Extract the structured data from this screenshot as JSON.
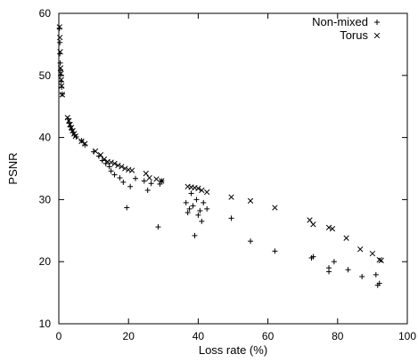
{
  "chart_data": {
    "type": "scatter",
    "title": "",
    "xlabel": "Loss rate (%)",
    "ylabel": "PSNR",
    "xlim": [
      0,
      100
    ],
    "ylim": [
      10,
      60
    ],
    "xticks": [
      0,
      20,
      40,
      60,
      80,
      100
    ],
    "yticks": [
      10,
      20,
      30,
      40,
      50,
      60
    ],
    "grid": false,
    "legend_position": "top-right",
    "series": [
      {
        "name": "Non-mixed",
        "marker": "plus",
        "color": "#000000",
        "points": [
          [
            0.2,
            57.6
          ],
          [
            0.3,
            55.3
          ],
          [
            0.3,
            53.5
          ],
          [
            0.4,
            52.0
          ],
          [
            0.5,
            50.8
          ],
          [
            0.5,
            50.0
          ],
          [
            0.7,
            49.0
          ],
          [
            0.8,
            48.1
          ],
          [
            1.0,
            47.0
          ],
          [
            2.6,
            43.0
          ],
          [
            3.0,
            42.3
          ],
          [
            3.3,
            41.7
          ],
          [
            3.7,
            41.2
          ],
          [
            4.0,
            40.8
          ],
          [
            4.5,
            40.4
          ],
          [
            5.0,
            40.1
          ],
          [
            6.5,
            39.5
          ],
          [
            7.5,
            38.8
          ],
          [
            10.0,
            37.7
          ],
          [
            11.5,
            37.0
          ],
          [
            12.5,
            36.3
          ],
          [
            13.5,
            35.8
          ],
          [
            14.5,
            35.3
          ],
          [
            15.0,
            34.6
          ],
          [
            16.0,
            34.0
          ],
          [
            17.5,
            33.5
          ],
          [
            18.5,
            32.8
          ],
          [
            19.5,
            28.7
          ],
          [
            20.5,
            32.1
          ],
          [
            22.0,
            33.4
          ],
          [
            24.5,
            33.0
          ],
          [
            25.5,
            31.5
          ],
          [
            26.5,
            32.6
          ],
          [
            28.5,
            25.6
          ],
          [
            29.0,
            32.5
          ],
          [
            29.5,
            33.0
          ],
          [
            36.5,
            29.5
          ],
          [
            37.0,
            27.9
          ],
          [
            37.5,
            28.5
          ],
          [
            38.0,
            31.0
          ],
          [
            38.5,
            29.0
          ],
          [
            39.0,
            24.2
          ],
          [
            39.5,
            30.0
          ],
          [
            40.0,
            27.5
          ],
          [
            40.5,
            28.2
          ],
          [
            41.0,
            26.5
          ],
          [
            41.5,
            29.5
          ],
          [
            42.5,
            28.5
          ],
          [
            49.5,
            27.0
          ],
          [
            55.0,
            23.3
          ],
          [
            62.0,
            21.7
          ],
          [
            72.5,
            20.6
          ],
          [
            73.0,
            20.8
          ],
          [
            77.5,
            19.0
          ],
          [
            77.5,
            18.4
          ],
          [
            79.0,
            20.0
          ],
          [
            83.0,
            18.7
          ],
          [
            87.0,
            17.6
          ],
          [
            91.0,
            17.9
          ],
          [
            91.5,
            16.2
          ],
          [
            92.0,
            16.5
          ]
        ]
      },
      {
        "name": "Torus",
        "marker": "cross",
        "color": "#000000",
        "points": [
          [
            0.2,
            57.8
          ],
          [
            0.3,
            56.1
          ],
          [
            0.4,
            53.8
          ],
          [
            0.5,
            51.2
          ],
          [
            0.6,
            50.3
          ],
          [
            0.7,
            49.3
          ],
          [
            0.8,
            48.3
          ],
          [
            1.0,
            46.9
          ],
          [
            2.5,
            43.2
          ],
          [
            2.9,
            42.7
          ],
          [
            3.2,
            42.1
          ],
          [
            3.6,
            41.6
          ],
          [
            4.0,
            41.1
          ],
          [
            4.4,
            40.6
          ],
          [
            4.8,
            40.2
          ],
          [
            6.5,
            39.4
          ],
          [
            7.5,
            39.0
          ],
          [
            10.5,
            37.8
          ],
          [
            12.0,
            37.2
          ],
          [
            13.0,
            36.5
          ],
          [
            14.0,
            36.1
          ],
          [
            15.0,
            36.0
          ],
          [
            16.0,
            35.8
          ],
          [
            17.0,
            35.5
          ],
          [
            18.0,
            35.3
          ],
          [
            19.0,
            35.0
          ],
          [
            20.0,
            34.8
          ],
          [
            21.0,
            34.7
          ],
          [
            25.0,
            34.2
          ],
          [
            26.0,
            33.5
          ],
          [
            28.0,
            33.3
          ],
          [
            29.5,
            33.0
          ],
          [
            37.0,
            32.1
          ],
          [
            38.0,
            32.0
          ],
          [
            39.0,
            31.9
          ],
          [
            40.0,
            31.8
          ],
          [
            41.0,
            31.5
          ],
          [
            42.5,
            31.2
          ],
          [
            49.5,
            30.4
          ],
          [
            55.0,
            29.8
          ],
          [
            62.0,
            28.7
          ],
          [
            72.0,
            26.7
          ],
          [
            73.0,
            26.0
          ],
          [
            77.5,
            25.5
          ],
          [
            78.5,
            25.3
          ],
          [
            82.5,
            23.8
          ],
          [
            86.5,
            22.0
          ],
          [
            90.0,
            21.3
          ],
          [
            92.0,
            20.3
          ],
          [
            92.5,
            20.2
          ]
        ]
      }
    ]
  }
}
